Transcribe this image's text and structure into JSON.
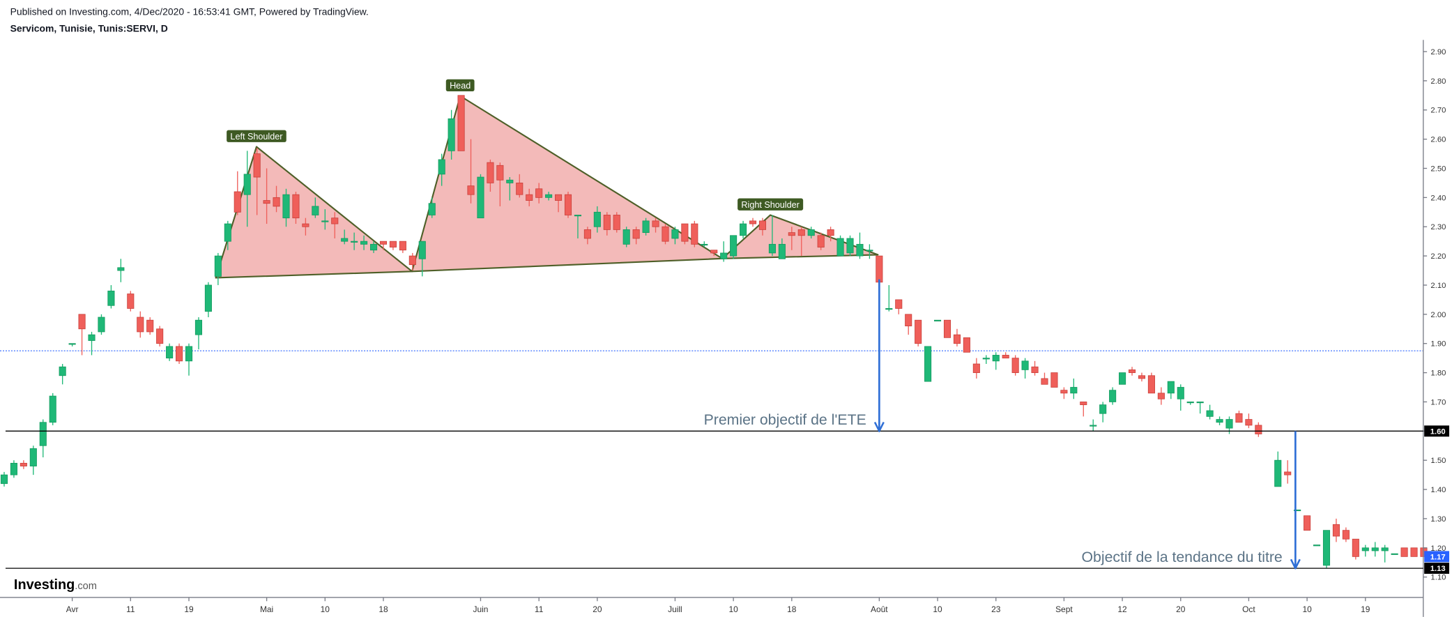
{
  "chart_data": {
    "type": "candlestick",
    "published": "Published on Investing.com, 4/Dec/2020 - 16:53:41 GMT, Powered by TradingView.",
    "title": "Servicom, Tunisie, Tunis:SERVI, D",
    "logo": "Investing",
    "logo_suffix": ".com",
    "up_color": "#1fb877",
    "down_color": "#ef5f5a",
    "ylim": [
      1.03,
      2.94
    ],
    "yticks": [
      {
        "value": 1.1,
        "label": "1.10"
      },
      {
        "value": 1.2,
        "label": "1.20"
      },
      {
        "value": 1.3,
        "label": "1.30"
      },
      {
        "value": 1.4,
        "label": "1.40"
      },
      {
        "value": 1.5,
        "label": "1.50"
      },
      {
        "value": 1.6,
        "label": "1.60"
      },
      {
        "value": 1.7,
        "label": "1.70"
      },
      {
        "value": 1.8,
        "label": "1.80"
      },
      {
        "value": 1.9,
        "label": "1.90"
      },
      {
        "value": 2.0,
        "label": "2.00"
      },
      {
        "value": 2.1,
        "label": "2.10"
      },
      {
        "value": 2.2,
        "label": "2.20"
      },
      {
        "value": 2.3,
        "label": "2.30"
      },
      {
        "value": 2.4,
        "label": "2.40"
      },
      {
        "value": 2.5,
        "label": "2.50"
      },
      {
        "value": 2.6,
        "label": "2.60"
      },
      {
        "value": 2.7,
        "label": "2.70"
      },
      {
        "value": 2.8,
        "label": "2.80"
      },
      {
        "value": 2.9,
        "label": "2.90"
      }
    ],
    "categories": [
      null,
      null,
      null,
      null,
      null,
      null,
      null,
      "Avr",
      null,
      null,
      null,
      null,
      null,
      "11",
      null,
      null,
      null,
      null,
      null,
      "19",
      null,
      null,
      null,
      null,
      null,
      null,
      null,
      "Mai",
      null,
      null,
      null,
      null,
      null,
      "10",
      null,
      null,
      null,
      null,
      null,
      "18",
      null,
      null,
      null,
      null,
      null,
      null,
      null,
      null,
      null,
      "Juin",
      null,
      null,
      null,
      null,
      null,
      "11",
      null,
      null,
      null,
      null,
      null,
      "20",
      null,
      null,
      null,
      null,
      null,
      null,
      null,
      "Juill",
      null,
      null,
      null,
      null,
      null,
      "10",
      null,
      null,
      null,
      null,
      null,
      "18",
      null,
      null,
      null,
      null,
      null,
      null,
      null,
      null,
      "Août",
      null,
      null,
      null,
      null,
      null,
      "10",
      null,
      null,
      null,
      null,
      null,
      "23",
      null,
      null,
      null,
      null,
      null,
      null,
      "Sept",
      null,
      null,
      null,
      null,
      null,
      "12",
      null,
      null,
      null,
      null,
      null,
      "20",
      null,
      null,
      null,
      null,
      null,
      null,
      "Oct",
      null,
      null,
      null,
      null,
      null,
      "10",
      null,
      null,
      null,
      null,
      null,
      "19",
      null,
      null,
      null,
      null,
      null,
      null
    ],
    "open": [
      1.42,
      1.45,
      1.49,
      1.48,
      1.55,
      1.63,
      1.79,
      1.9,
      2.0,
      1.91,
      1.94,
      2.03,
      2.15,
      2.07,
      1.99,
      1.98,
      1.95,
      1.85,
      1.89,
      1.84,
      1.93,
      2.01,
      2.13,
      2.25,
      2.42,
      2.41,
      2.55,
      2.39,
      2.4,
      2.33,
      2.41,
      2.31,
      2.34,
      2.32,
      2.33,
      2.25,
      2.25,
      2.24,
      2.22,
      2.25,
      2.25,
      2.25,
      2.2,
      2.19,
      2.34,
      2.48,
      2.56,
      2.75,
      2.44,
      2.33,
      2.52,
      2.51,
      2.45,
      2.45,
      2.41,
      2.43,
      2.4,
      2.41,
      2.41,
      2.34,
      2.29,
      2.3,
      2.34,
      2.34,
      2.24,
      2.29,
      2.28,
      2.32,
      2.3,
      2.26,
      2.31,
      2.31,
      2.24,
      2.22,
      2.19,
      2.2,
      2.27,
      2.32,
      2.32,
      2.21,
      2.19,
      2.28,
      2.29,
      2.27,
      2.27,
      2.29,
      2.2,
      2.21,
      2.2,
      2.22,
      2.2,
      2.02,
      2.05,
      2.0,
      1.98,
      1.77,
      1.98,
      1.98,
      1.93,
      1.92,
      1.83,
      1.85,
      1.84,
      1.86,
      1.85,
      1.81,
      1.82,
      1.78,
      1.8,
      1.74,
      1.73,
      1.7,
      1.62,
      1.66,
      1.7,
      1.76,
      1.81,
      1.79,
      1.79,
      1.73,
      1.73,
      1.71,
      1.7,
      1.7,
      1.65,
      1.63,
      1.61,
      1.66,
      1.64,
      1.62,
      null,
      1.41,
      1.46,
      1.33,
      1.31,
      1.21,
      1.14,
      1.28,
      1.26,
      1.23,
      1.19,
      1.19,
      1.19,
      1.18,
      1.2,
      1.2,
      1.2
    ],
    "high": [
      1.46,
      1.5,
      1.5,
      1.55,
      1.64,
      1.73,
      1.83,
      1.9,
      2.0,
      1.94,
      2.0,
      2.1,
      2.19,
      2.08,
      2.01,
      1.99,
      1.96,
      1.9,
      1.9,
      1.9,
      1.99,
      2.11,
      2.21,
      2.32,
      2.49,
      2.56,
      2.57,
      2.5,
      2.44,
      2.43,
      2.42,
      2.33,
      2.4,
      2.36,
      2.35,
      2.29,
      2.28,
      2.27,
      2.25,
      2.25,
      2.25,
      2.25,
      2.21,
      2.25,
      2.4,
      2.55,
      2.7,
      2.75,
      2.6,
      2.48,
      2.53,
      2.52,
      2.47,
      2.48,
      2.43,
      2.45,
      2.42,
      2.41,
      2.42,
      2.34,
      2.3,
      2.37,
      2.35,
      2.35,
      2.3,
      2.3,
      2.33,
      2.33,
      2.31,
      2.3,
      2.31,
      2.32,
      2.25,
      2.22,
      2.25,
      2.27,
      2.32,
      2.33,
      2.33,
      2.34,
      2.26,
      2.3,
      2.3,
      2.3,
      2.28,
      2.3,
      2.27,
      2.27,
      2.28,
      2.24,
      2.2,
      2.1,
      2.05,
      2.0,
      1.98,
      1.89,
      1.98,
      1.98,
      1.95,
      1.92,
      1.85,
      1.86,
      1.87,
      1.87,
      1.86,
      1.85,
      1.84,
      1.8,
      1.8,
      1.75,
      1.78,
      1.7,
      1.64,
      1.7,
      1.75,
      1.8,
      1.82,
      1.8,
      1.8,
      1.75,
      1.77,
      1.76,
      1.7,
      1.7,
      1.69,
      1.65,
      1.65,
      1.67,
      1.66,
      1.63,
      null,
      1.53,
      1.5,
      1.33,
      1.31,
      1.21,
      1.26,
      1.3,
      1.27,
      1.23,
      1.21,
      1.22,
      1.21,
      1.18,
      1.2,
      1.2,
      1.2
    ],
    "low": [
      1.41,
      1.44,
      1.47,
      1.45,
      1.51,
      1.62,
      1.76,
      1.89,
      1.86,
      1.86,
      1.93,
      2.02,
      2.11,
      2.01,
      1.92,
      1.93,
      1.89,
      1.84,
      1.83,
      1.79,
      1.88,
      1.99,
      2.1,
      2.22,
      2.34,
      2.3,
      2.34,
      2.31,
      2.35,
      2.3,
      2.31,
      2.27,
      2.33,
      2.29,
      2.26,
      2.24,
      2.22,
      2.22,
      2.21,
      2.22,
      2.22,
      2.21,
      2.15,
      2.13,
      2.33,
      2.44,
      2.53,
      2.56,
      2.38,
      2.33,
      2.42,
      2.37,
      2.39,
      2.4,
      2.37,
      2.38,
      2.39,
      2.35,
      2.33,
      2.26,
      2.24,
      2.28,
      2.27,
      2.28,
      2.23,
      2.24,
      2.27,
      2.28,
      2.24,
      2.24,
      2.24,
      2.23,
      2.23,
      2.2,
      2.18,
      2.19,
      2.26,
      2.3,
      2.27,
      2.2,
      2.19,
      2.22,
      2.2,
      2.26,
      2.22,
      2.25,
      2.2,
      2.2,
      2.19,
      2.19,
      2.11,
      2.01,
      2.0,
      1.93,
      1.89,
      1.77,
      1.98,
      1.92,
      1.89,
      1.87,
      1.78,
      1.83,
      1.81,
      1.85,
      1.79,
      1.78,
      1.79,
      1.76,
      1.75,
      1.71,
      1.71,
      1.65,
      1.6,
      1.63,
      1.69,
      1.76,
      1.79,
      1.77,
      1.73,
      1.69,
      1.71,
      1.67,
      1.69,
      1.66,
      1.64,
      1.62,
      1.59,
      1.63,
      1.61,
      1.58,
      null,
      1.41,
      1.42,
      1.33,
      1.26,
      1.21,
      1.13,
      1.22,
      1.22,
      1.16,
      1.17,
      1.17,
      1.15,
      1.18,
      1.17,
      1.17,
      1.17
    ],
    "close": [
      1.45,
      1.49,
      1.48,
      1.54,
      1.63,
      1.72,
      1.82,
      1.9,
      1.95,
      1.93,
      1.99,
      2.08,
      2.16,
      2.02,
      1.94,
      1.94,
      1.9,
      1.89,
      1.84,
      1.89,
      1.98,
      2.1,
      2.2,
      2.31,
      2.35,
      2.48,
      2.47,
      2.38,
      2.37,
      2.41,
      2.33,
      2.3,
      2.37,
      2.32,
      2.31,
      2.26,
      2.25,
      2.25,
      2.24,
      2.24,
      2.23,
      2.22,
      2.17,
      2.25,
      2.38,
      2.53,
      2.67,
      2.56,
      2.41,
      2.47,
      2.45,
      2.46,
      2.46,
      2.41,
      2.39,
      2.4,
      2.41,
      2.39,
      2.34,
      2.34,
      2.26,
      2.35,
      2.29,
      2.29,
      2.29,
      2.26,
      2.32,
      2.3,
      2.25,
      2.29,
      2.25,
      2.24,
      2.24,
      2.21,
      2.21,
      2.27,
      2.31,
      2.31,
      2.29,
      2.24,
      2.24,
      2.27,
      2.27,
      2.29,
      2.23,
      2.27,
      2.26,
      2.26,
      2.24,
      2.22,
      2.11,
      2.02,
      2.02,
      1.96,
      1.9,
      1.89,
      1.98,
      1.92,
      1.9,
      1.87,
      1.8,
      1.85,
      1.86,
      1.85,
      1.8,
      1.84,
      1.8,
      1.76,
      1.75,
      1.73,
      1.75,
      1.69,
      1.62,
      1.69,
      1.74,
      1.8,
      1.8,
      1.78,
      1.73,
      1.71,
      1.77,
      1.75,
      1.7,
      1.7,
      1.67,
      1.64,
      1.64,
      1.63,
      1.62,
      1.59,
      null,
      1.5,
      1.45,
      1.33,
      1.26,
      1.21,
      1.26,
      1.24,
      1.23,
      1.17,
      1.2,
      1.2,
      1.2,
      1.18,
      1.17,
      1.17,
      1.17
    ],
    "ref_line": {
      "value": 1.875,
      "color": "#2962ff",
      "style": "dotted"
    },
    "hlines": [
      {
        "value": 1.6,
        "label": "1.60",
        "color": "#000000"
      },
      {
        "value": 1.13,
        "label": "1.13",
        "color": "#000000"
      }
    ],
    "last_price": {
      "value": 1.17,
      "label": "1.17",
      "color": "#2962ff"
    },
    "patterns": [
      {
        "label": "Left Shoulder",
        "points": [
          {
            "x": 21.76,
            "y": 2.125
          },
          {
            "x": 25.95,
            "y": 2.574
          },
          {
            "x": 41.95,
            "y": 2.147
          }
        ]
      },
      {
        "label": "Head",
        "points": [
          {
            "x": 41.95,
            "y": 2.147
          },
          {
            "x": 46.9,
            "y": 2.748
          },
          {
            "x": 73.86,
            "y": 2.191
          }
        ]
      },
      {
        "label": "Right Shoulder",
        "points": [
          {
            "x": 73.86,
            "y": 2.191
          },
          {
            "x": 78.8,
            "y": 2.34
          },
          {
            "x": 89.86,
            "y": 2.204
          }
        ]
      }
    ],
    "pattern_fill": "#f2b6b5",
    "pattern_stroke": "#4e5f28",
    "pattern_label_color": "#3e5a23",
    "arrows": [
      {
        "label": "Premier objectif de l'ETE",
        "x": 90,
        "from": 2.12,
        "to": 1.6,
        "color": "#2f6fd6"
      },
      {
        "label": "Objectif de la tendance du titre",
        "x": 132.8,
        "from": 1.6,
        "to": 1.13,
        "color": "#2f6fd6"
      }
    ]
  }
}
